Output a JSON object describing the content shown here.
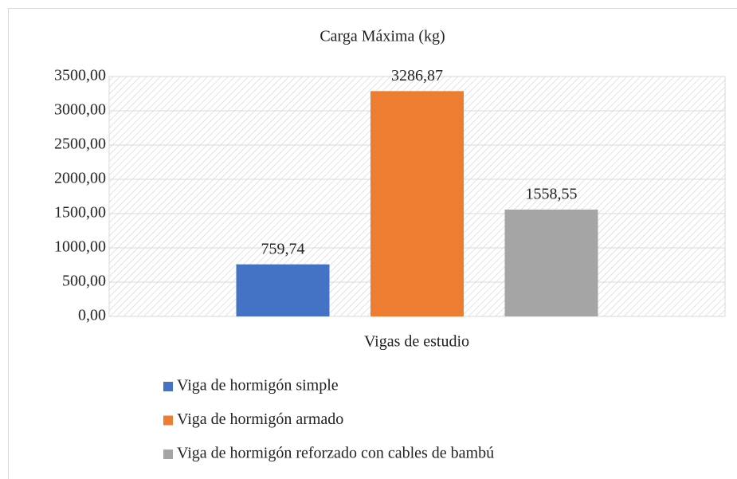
{
  "chart_data": {
    "type": "bar",
    "title": "Carga Máxima (kg)",
    "categories": [
      "Vigas de estudio"
    ],
    "series": [
      {
        "name": "Viga de hormigón simple",
        "color": "#4472c4",
        "values": [
          759.74
        ],
        "value_labels": [
          "759,74"
        ]
      },
      {
        "name": "Viga de hormigón armado",
        "color": "#ed7d31",
        "values": [
          3286.87
        ],
        "value_labels": [
          "3286,87"
        ]
      },
      {
        "name": "Viga de hormigón reforzado con cables de bambú",
        "color": "#a5a5a5",
        "values": [
          1558.55
        ],
        "value_labels": [
          "1558,55"
        ]
      }
    ],
    "ylim": [
      0,
      3500
    ],
    "yticks": [
      {
        "value": 0,
        "label": "0,00"
      },
      {
        "value": 500,
        "label": "500,00"
      },
      {
        "value": 1000,
        "label": "1000,00"
      },
      {
        "value": 1500,
        "label": "1500,00"
      },
      {
        "value": 2000,
        "label": "2000,00"
      },
      {
        "value": 2500,
        "label": "2500,00"
      },
      {
        "value": 3000,
        "label": "3000,00"
      },
      {
        "value": 3500,
        "label": "3500,00"
      }
    ],
    "grid": true,
    "legend": "bottom"
  }
}
